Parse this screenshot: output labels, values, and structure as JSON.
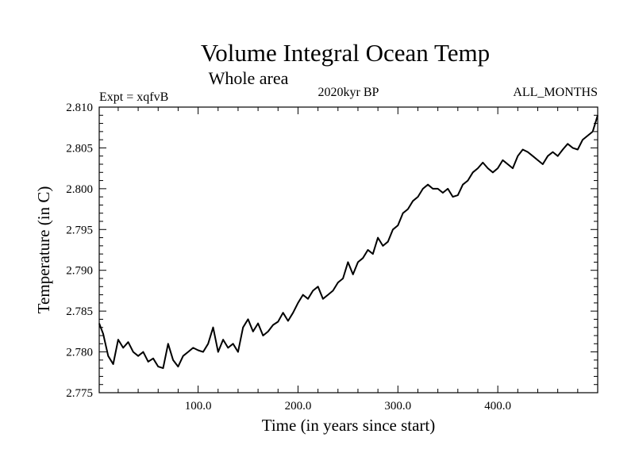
{
  "chart_data": {
    "type": "line",
    "title": "Volume Integral Ocean Temp",
    "subtitle": "Whole area",
    "header_left": "Expt = xqfvB",
    "header_center": "2020kyr BP",
    "header_right": "ALL_MONTHS",
    "xlabel": "Time (in years since start)",
    "ylabel": "Temperature (in C)",
    "xlim": [
      1,
      500
    ],
    "ylim": [
      2.775,
      2.81
    ],
    "xticks": [
      100,
      200,
      300,
      400
    ],
    "xtick_labels": [
      "100.0",
      "200.0",
      "300.0",
      "400.0"
    ],
    "yticks": [
      2.775,
      2.78,
      2.785,
      2.79,
      2.795,
      2.8,
      2.805,
      2.81
    ],
    "ytick_labels": [
      "2.775",
      "2.780",
      "2.785",
      "2.790",
      "2.795",
      "2.800",
      "2.805",
      "2.810"
    ],
    "grid": false,
    "series": [
      {
        "name": "Volume integral ocean temperature",
        "color": "#000000",
        "x": [
          1,
          5,
          10,
          15,
          20,
          25,
          30,
          35,
          40,
          45,
          50,
          55,
          60,
          65,
          70,
          75,
          80,
          85,
          90,
          95,
          100,
          105,
          110,
          115,
          120,
          125,
          130,
          135,
          140,
          145,
          150,
          155,
          160,
          165,
          170,
          175,
          180,
          185,
          190,
          195,
          200,
          205,
          210,
          215,
          220,
          225,
          230,
          235,
          240,
          245,
          250,
          255,
          260,
          265,
          270,
          275,
          280,
          285,
          290,
          295,
          300,
          305,
          310,
          315,
          320,
          325,
          330,
          335,
          340,
          345,
          350,
          355,
          360,
          365,
          370,
          375,
          380,
          385,
          390,
          395,
          400,
          405,
          410,
          415,
          420,
          425,
          430,
          435,
          440,
          445,
          450,
          455,
          460,
          465,
          470,
          475,
          480,
          485,
          490,
          495,
          500
        ],
        "values": [
          2.7835,
          2.7822,
          2.7795,
          2.7785,
          2.7815,
          2.7805,
          2.7812,
          2.78,
          2.7795,
          2.78,
          2.7788,
          2.7792,
          2.7782,
          2.778,
          2.781,
          2.779,
          2.7782,
          2.7795,
          2.78,
          2.7805,
          2.7802,
          2.78,
          2.781,
          2.783,
          2.78,
          2.7815,
          2.7805,
          2.781,
          2.78,
          2.783,
          2.784,
          2.7825,
          2.7835,
          2.782,
          2.7825,
          2.7833,
          2.7837,
          2.7848,
          2.7838,
          2.7848,
          2.786,
          2.787,
          2.7865,
          2.7875,
          2.788,
          2.7865,
          2.787,
          2.7875,
          2.7885,
          2.789,
          2.791,
          2.7895,
          2.791,
          2.7915,
          2.7925,
          2.792,
          2.794,
          2.793,
          2.7935,
          2.795,
          2.7955,
          2.797,
          2.7975,
          2.7985,
          2.799,
          2.8,
          2.8005,
          2.8,
          2.8,
          2.7995,
          2.8,
          2.799,
          2.7992,
          2.8005,
          2.801,
          2.802,
          2.8025,
          2.8032,
          2.8025,
          2.802,
          2.8025,
          2.8035,
          2.803,
          2.8025,
          2.804,
          2.8048,
          2.8045,
          2.804,
          2.8035,
          2.803,
          2.804,
          2.8045,
          2.804,
          2.8048,
          2.8055,
          2.805,
          2.8048,
          2.806,
          2.8065,
          2.807,
          2.809
        ]
      }
    ]
  }
}
